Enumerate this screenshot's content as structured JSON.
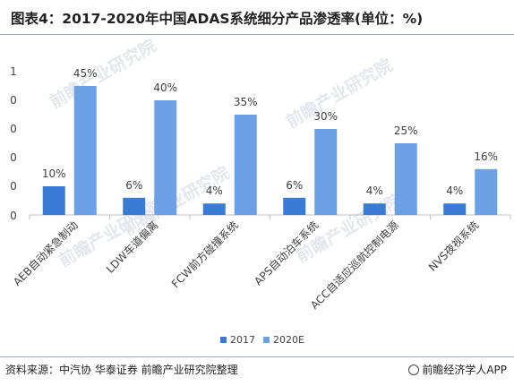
{
  "title": "图表4：2017-2020年中国ADAS系统细分产品渗透率(单位：%)",
  "source": "资料来源：中汽协 华泰证券 前瞻产业研究院整理",
  "brand": "前瞻经济学人APP",
  "watermark": "前瞻产业研究院",
  "colors": {
    "series_2017": "#3a7bd5",
    "series_2020": "#6da1e6",
    "axis": "#bfbfbf",
    "text": "#404040"
  },
  "chart_data": {
    "type": "bar",
    "categories": [
      "AEB自动紧急制动",
      "LDW车道偏离",
      "FCW前方碰撞系统",
      "APS自动泊车系统",
      "ACC自适应巡航控制电源",
      "NVS夜视系统"
    ],
    "series": [
      {
        "name": "2017",
        "values": [
          10,
          6,
          4,
          6,
          4,
          4
        ],
        "labels": [
          "10%",
          "6%",
          "4%",
          "6%",
          "4%",
          "4%"
        ]
      },
      {
        "name": "2020E",
        "values": [
          45,
          40,
          35,
          30,
          25,
          16
        ],
        "labels": [
          "45%",
          "40%",
          "35%",
          "30%",
          "25%",
          "16%"
        ]
      }
    ],
    "yticks": [
      "0",
      "0",
      "0",
      "0",
      "0",
      "1"
    ],
    "ylim": [
      0,
      50
    ],
    "legend_position": "bottom"
  }
}
